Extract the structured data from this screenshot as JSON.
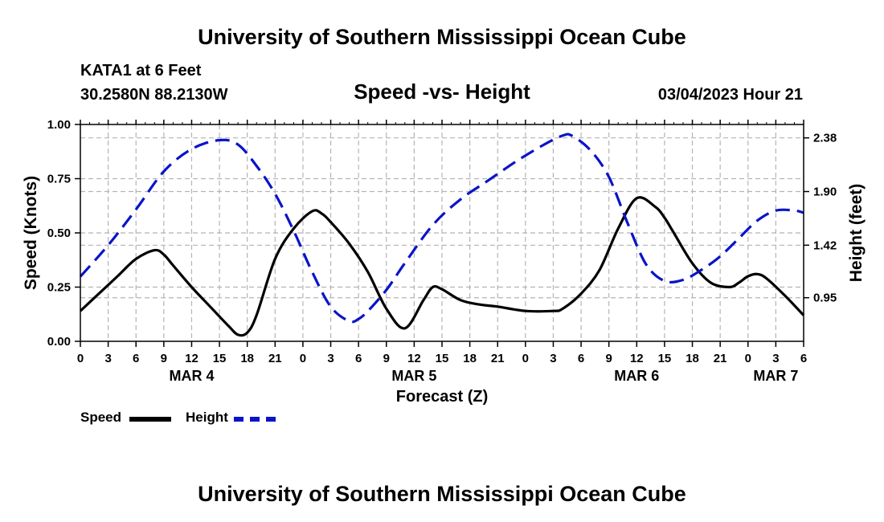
{
  "header": {
    "title": "University of Southern Mississippi Ocean Cube",
    "station": "KATA1 at 6 Feet",
    "coords": "30.2580N  88.2130W",
    "datetime": "03/04/2023 Hour 21",
    "footer_title": "University of Southern Mississippi Ocean Cube"
  },
  "legend": {
    "speed_label": "Speed",
    "height_label": "Height"
  },
  "colors": {
    "speed": "#000000",
    "height": "#0a14c8",
    "grid": "#b4b4b4"
  },
  "chart_data": {
    "type": "line",
    "title": "Speed -vs- Height",
    "xlabel": "Forecast (Z)",
    "ylabel": "Speed (Knots)",
    "y2label": "Height (feet)",
    "xlim": [
      0,
      78
    ],
    "ylim": [
      0,
      1
    ],
    "y2lim": [
      0.56,
      2.5
    ],
    "x_ticks": [
      0,
      3,
      6,
      9,
      12,
      15,
      18,
      21,
      24,
      27,
      30,
      33,
      36,
      39,
      42,
      45,
      48,
      51,
      54,
      57,
      60,
      63,
      66,
      69,
      72,
      75,
      78
    ],
    "x_tick_labels": [
      "0",
      "3",
      "6",
      "9",
      "12",
      "15",
      "18",
      "21",
      "0",
      "3",
      "6",
      "9",
      "12",
      "15",
      "18",
      "21",
      "0",
      "3",
      "6",
      "9",
      "12",
      "15",
      "18",
      "21",
      "0",
      "3",
      "6"
    ],
    "date_labels": [
      {
        "x": 12,
        "label": "MAR 4"
      },
      {
        "x": 36,
        "label": "MAR 5"
      },
      {
        "x": 60,
        "label": "MAR 6"
      },
      {
        "x": 75,
        "label": "MAR 7"
      }
    ],
    "y_ticks": [
      0.0,
      0.25,
      0.5,
      0.75,
      1.0
    ],
    "y_tick_labels": [
      "0.00",
      "0.25",
      "0.50",
      "0.75",
      "1.00"
    ],
    "y2_ticks": [
      0.95,
      1.42,
      1.9,
      2.38
    ],
    "y2_tick_labels": [
      "0.95",
      "1.42",
      "1.90",
      "2.38"
    ],
    "series": [
      {
        "name": "Speed",
        "axis": "left",
        "style": "solid",
        "x": [
          0,
          2,
          4,
          6,
          8,
          9,
          10,
          12,
          14,
          16,
          17,
          18,
          19,
          21,
          23,
          25,
          26,
          27,
          29,
          31,
          33,
          35,
          37,
          38,
          39,
          41,
          43,
          45,
          48,
          51,
          52,
          54,
          56,
          58,
          60,
          62,
          63,
          64,
          66,
          68,
          70,
          71,
          72,
          73,
          74,
          76,
          78
        ],
        "values": [
          0.14,
          0.22,
          0.3,
          0.38,
          0.42,
          0.4,
          0.35,
          0.25,
          0.16,
          0.07,
          0.03,
          0.04,
          0.12,
          0.38,
          0.52,
          0.6,
          0.59,
          0.55,
          0.45,
          0.32,
          0.15,
          0.06,
          0.19,
          0.25,
          0.24,
          0.19,
          0.17,
          0.16,
          0.14,
          0.14,
          0.15,
          0.22,
          0.33,
          0.52,
          0.66,
          0.62,
          0.57,
          0.5,
          0.36,
          0.27,
          0.25,
          0.27,
          0.3,
          0.31,
          0.29,
          0.21,
          0.12
        ]
      },
      {
        "name": "Height",
        "axis": "right",
        "style": "dashed",
        "x": [
          0,
          3,
          6,
          9,
          12,
          15,
          17,
          19,
          21,
          23,
          25,
          27,
          29,
          30,
          31,
          33,
          35,
          38,
          41,
          44,
          47,
          50,
          52,
          53,
          55,
          57,
          59,
          61,
          63,
          65,
          67,
          69,
          71,
          73,
          75,
          77,
          78
        ],
        "values": [
          1.14,
          1.42,
          1.74,
          2.08,
          2.28,
          2.36,
          2.32,
          2.13,
          1.88,
          1.55,
          1.18,
          0.87,
          0.74,
          0.76,
          0.83,
          1.02,
          1.26,
          1.6,
          1.83,
          2.0,
          2.17,
          2.32,
          2.4,
          2.4,
          2.27,
          2.03,
          1.62,
          1.25,
          1.1,
          1.11,
          1.2,
          1.32,
          1.48,
          1.64,
          1.73,
          1.73,
          1.71
        ]
      }
    ]
  }
}
